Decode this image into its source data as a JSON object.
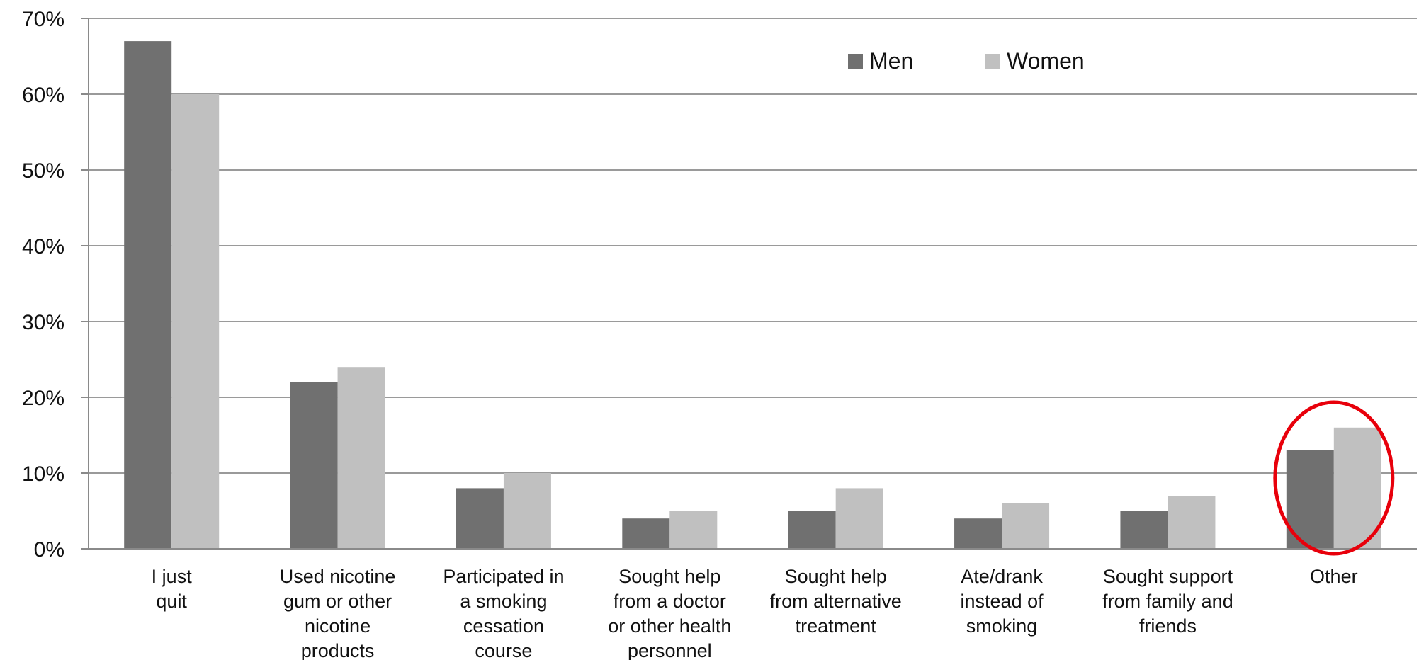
{
  "chart_data": {
    "type": "bar",
    "categories": [
      [
        "I just",
        "quit"
      ],
      [
        "Used nicotine",
        "gum or other",
        "nicotine",
        "products"
      ],
      [
        "Participated in",
        "a smoking",
        "cessation",
        "course"
      ],
      [
        "Sought help",
        "from a doctor",
        "or other health",
        "personnel"
      ],
      [
        "Sought help",
        "from alternative",
        "treatment"
      ],
      [
        "Ate/drank",
        "instead of",
        "smoking"
      ],
      [
        "Sought support",
        "from family and",
        "friends"
      ],
      [
        "Other"
      ]
    ],
    "series": [
      {
        "name": "Men",
        "color": "#707070",
        "values": [
          67,
          22,
          8,
          4,
          5,
          4,
          5,
          13
        ]
      },
      {
        "name": "Women",
        "color": "#c0c0c0",
        "values": [
          60,
          24,
          10,
          5,
          8,
          6,
          7,
          16
        ]
      }
    ],
    "yticks": [
      "0%",
      "10%",
      "20%",
      "30%",
      "40%",
      "50%",
      "60%",
      "70%"
    ],
    "ylim": [
      0,
      70
    ],
    "grid": true,
    "legend_position": "top-right",
    "highlight": {
      "category_index": 7,
      "shape": "ellipse",
      "color": "#e8000b"
    },
    "title": "",
    "xlabel": "",
    "ylabel": ""
  }
}
